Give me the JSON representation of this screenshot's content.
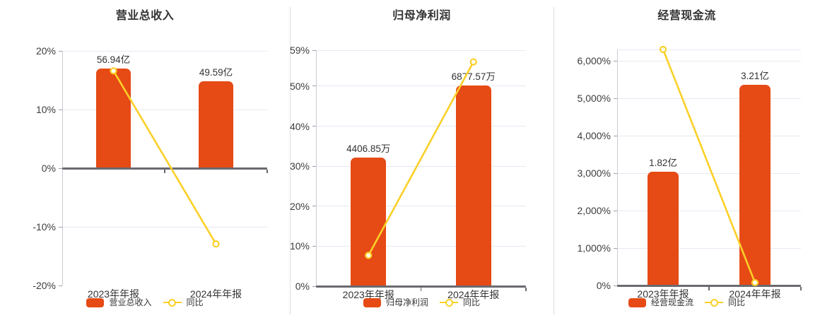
{
  "colors": {
    "bar": "#e64a15",
    "line": "#fbd028",
    "grid": "#e5e9f2",
    "axis_line": "#c9ccd4",
    "tick_mark": "#9aa0a8",
    "zero_line": "#6a6a70",
    "title_text": "#333333",
    "tick_text": "#3d3d3d",
    "label_text": "#333333",
    "divider": "#d9dde4",
    "background": "#ffffff"
  },
  "chart_data": [
    {
      "type": "bar",
      "title": "营业总收入",
      "categories": [
        "2023年年报",
        "2024年年报"
      ],
      "bar_series": {
        "name": "营业总收入",
        "unit": "亿",
        "values": [
          56.94,
          49.59
        ],
        "labels": [
          "56.94亿",
          "49.59亿"
        ]
      },
      "line_series": {
        "name": "同比",
        "unit": "%",
        "values": [
          16.6,
          -12.91
        ]
      },
      "yaxis": {
        "min": -20,
        "max": 20,
        "ticks": [
          {
            "v": 20,
            "label": "20%"
          },
          {
            "v": 10,
            "label": "10%"
          },
          {
            "v": 0,
            "label": "0%"
          },
          {
            "v": -10,
            "label": "-10%"
          },
          {
            "v": -20,
            "label": "-20%"
          }
        ]
      },
      "legend_position": "bottom",
      "grid": true
    },
    {
      "type": "bar",
      "title": "归母净利润",
      "categories": [
        "2023年年报",
        "2024年年报"
      ],
      "bar_series": {
        "name": "归母净利润",
        "unit": "万",
        "values": [
          4406.85,
          6877.57
        ],
        "labels": [
          "4406.85万",
          "6877.57万"
        ]
      },
      "line_series": {
        "name": "同比",
        "unit": "%",
        "values": [
          7.7,
          56.07
        ]
      },
      "yaxis": {
        "min": 0,
        "max": 59,
        "ticks": [
          {
            "v": 59,
            "label": "59%"
          },
          {
            "v": 50,
            "label": "50%"
          },
          {
            "v": 40,
            "label": "40%"
          },
          {
            "v": 30,
            "label": "30%"
          },
          {
            "v": 20,
            "label": "20%"
          },
          {
            "v": 10,
            "label": "10%"
          },
          {
            "v": 0,
            "label": "0%"
          }
        ]
      },
      "legend_position": "bottom",
      "grid": true
    },
    {
      "type": "bar",
      "title": "经营现金流",
      "categories": [
        "2023年年报",
        "2024年年报"
      ],
      "bar_series": {
        "name": "经营现金流",
        "unit": "亿",
        "values": [
          1.82,
          3.21
        ],
        "labels": [
          "1.82亿",
          "3.21亿"
        ]
      },
      "line_series": {
        "name": "同比",
        "unit": "%",
        "values": [
          6308,
          76.4
        ]
      },
      "yaxis": {
        "min": 0,
        "max": 6308,
        "ticks": [
          {
            "v": 6308,
            "label": ""
          },
          {
            "v": 6000,
            "label": "6,000%"
          },
          {
            "v": 5000,
            "label": "5,000%"
          },
          {
            "v": 4000,
            "label": "4,000%"
          },
          {
            "v": 3000,
            "label": "3,000%"
          },
          {
            "v": 2000,
            "label": "2,000%"
          },
          {
            "v": 1000,
            "label": "1,000%"
          },
          {
            "v": 0,
            "label": "0%"
          }
        ]
      },
      "legend_position": "bottom",
      "grid": true
    }
  ]
}
